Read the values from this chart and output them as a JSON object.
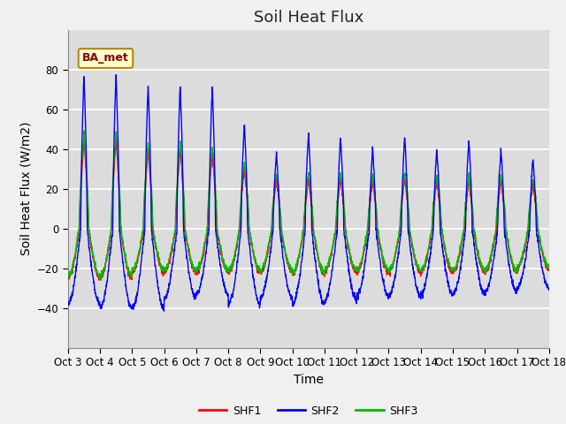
{
  "title": "Soil Heat Flux",
  "xlabel": "Time",
  "ylabel": "Soil Heat Flux (W/m2)",
  "ylim": [
    -60,
    100
  ],
  "yticks": [
    -40,
    -20,
    0,
    20,
    40,
    60,
    80
  ],
  "annotation_text": "BA_met",
  "annotation_color": "#8B0000",
  "annotation_bg": "#FFFFCC",
  "annotation_border": "#B8860B",
  "shf1_color": "#FF0000",
  "shf2_color": "#0000FF",
  "shf3_color": "#00BB00",
  "legend_labels": [
    "SHF1",
    "SHF2",
    "SHF3"
  ],
  "plot_bg": "#DCDCDC",
  "fig_bg": "#F0F0F0",
  "x_tick_labels": [
    "Oct 3",
    "Oct 4",
    "Oct 5",
    "Oct 6",
    "Oct 7",
    "Oct 8",
    "Oct 9",
    "Oct 10",
    "Oct 11",
    "Oct 12",
    "Oct 13",
    "Oct 14",
    "Oct 15",
    "Oct 16",
    "Oct 17",
    "Oct 18"
  ],
  "title_fontsize": 13,
  "axis_label_fontsize": 10,
  "tick_fontsize": 8.5
}
